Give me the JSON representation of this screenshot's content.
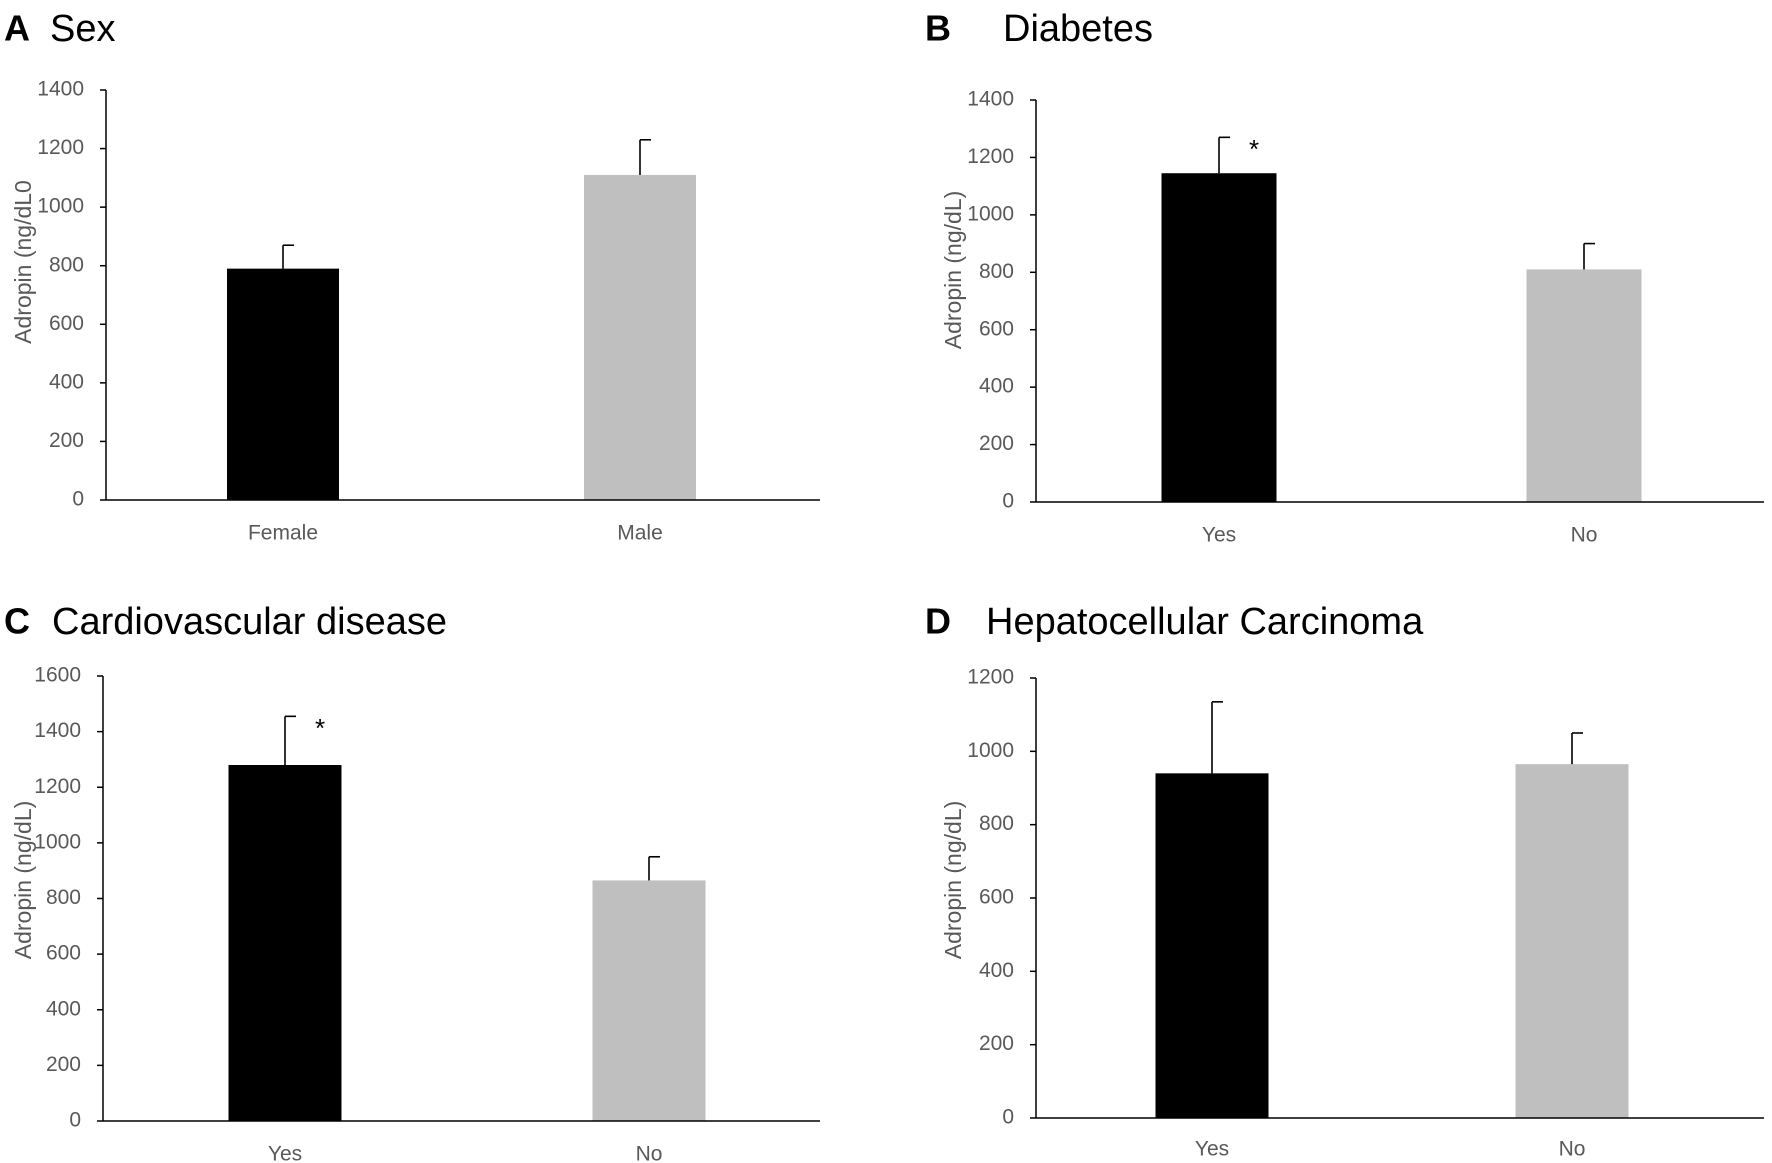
{
  "chart_data": [
    {
      "type": "bar",
      "panel": "A",
      "title": "Sex",
      "ylabel": "Adropin (ng/dL0",
      "categories": [
        "Female",
        "Male"
      ],
      "values": [
        790,
        1110
      ],
      "errors": [
        80,
        120
      ],
      "annotations": [
        "",
        ""
      ],
      "ylim": [
        0,
        1400
      ],
      "yticks": [
        "0",
        "200",
        "400",
        "600",
        "800",
        "1000",
        "1200",
        "1400"
      ],
      "colors": [
        "#000000",
        "#bfbfbf"
      ],
      "grid": false
    },
    {
      "type": "bar",
      "panel": "B",
      "title": "Diabetes",
      "ylabel": "Adropin (ng/dL)",
      "categories": [
        "Yes",
        "No"
      ],
      "values": [
        1145,
        810
      ],
      "errors": [
        125,
        90
      ],
      "annotations": [
        "*",
        ""
      ],
      "ylim": [
        0,
        1400
      ],
      "yticks": [
        "0",
        "200",
        "400",
        "600",
        "800",
        "1000",
        "1200",
        "1400"
      ],
      "colors": [
        "#000000",
        "#bfbfbf"
      ],
      "grid": false
    },
    {
      "type": "bar",
      "panel": "C",
      "title": "Cardiovascular disease",
      "ylabel": "Adropin (ng/dL)",
      "categories": [
        "Yes",
        "No"
      ],
      "values": [
        1280,
        865
      ],
      "errors": [
        175,
        85
      ],
      "annotations": [
        "*",
        ""
      ],
      "ylim": [
        0,
        1600
      ],
      "yticks": [
        "0",
        "200",
        "400",
        "600",
        "800",
        "1000",
        "1200",
        "1400",
        "1600"
      ],
      "colors": [
        "#000000",
        "#bfbfbf"
      ],
      "grid": false
    },
    {
      "type": "bar",
      "panel": "D",
      "title": "Hepatocellular Carcinoma",
      "ylabel": "Adropin (ng/dL)",
      "categories": [
        "Yes",
        "No"
      ],
      "values": [
        940,
        965
      ],
      "errors": [
        195,
        85
      ],
      "annotations": [
        "",
        ""
      ],
      "ylim": [
        0,
        1200
      ],
      "yticks": [
        "0",
        "200",
        "400",
        "600",
        "800",
        "1000",
        "1200"
      ],
      "colors": [
        "#000000",
        "#bfbfbf"
      ],
      "grid": false
    }
  ]
}
